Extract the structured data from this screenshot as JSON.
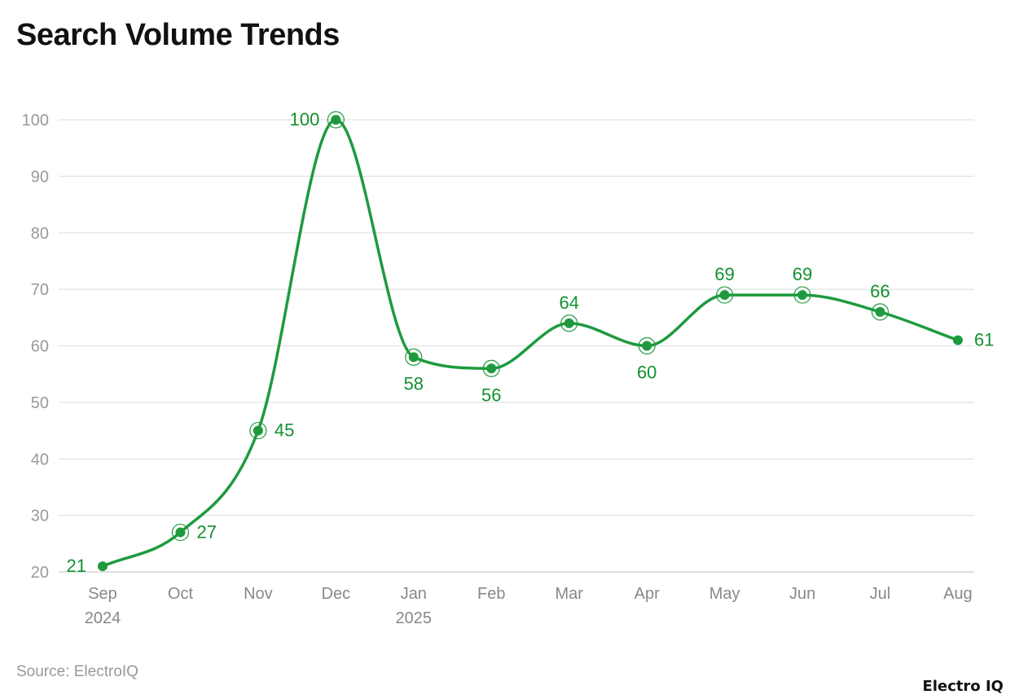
{
  "chart_data": {
    "type": "line",
    "title": "Search Volume Trends",
    "categories": [
      "Sep",
      "Oct",
      "Nov",
      "Dec",
      "Jan",
      "Feb",
      "Mar",
      "Apr",
      "May",
      "Jun",
      "Jul",
      "Aug"
    ],
    "category_sublabels": [
      "2024",
      "",
      "",
      "",
      "2025",
      "",
      "",
      "",
      "",
      "",
      "",
      ""
    ],
    "values": [
      21,
      27,
      45,
      100,
      58,
      56,
      64,
      60,
      69,
      69,
      66,
      61
    ],
    "label_positions": [
      "left",
      "right",
      "right",
      "left",
      "below",
      "below",
      "above",
      "below",
      "above",
      "above",
      "above",
      "right"
    ],
    "ylim": [
      20,
      100
    ],
    "yticks": [
      20,
      30,
      40,
      50,
      60,
      70,
      80,
      90,
      100
    ],
    "grid": true,
    "smooth": true,
    "color": "#1e9a3e",
    "label_color": "#13902f"
  },
  "source": "Source: ElectroIQ",
  "logo": "Electro IQ"
}
